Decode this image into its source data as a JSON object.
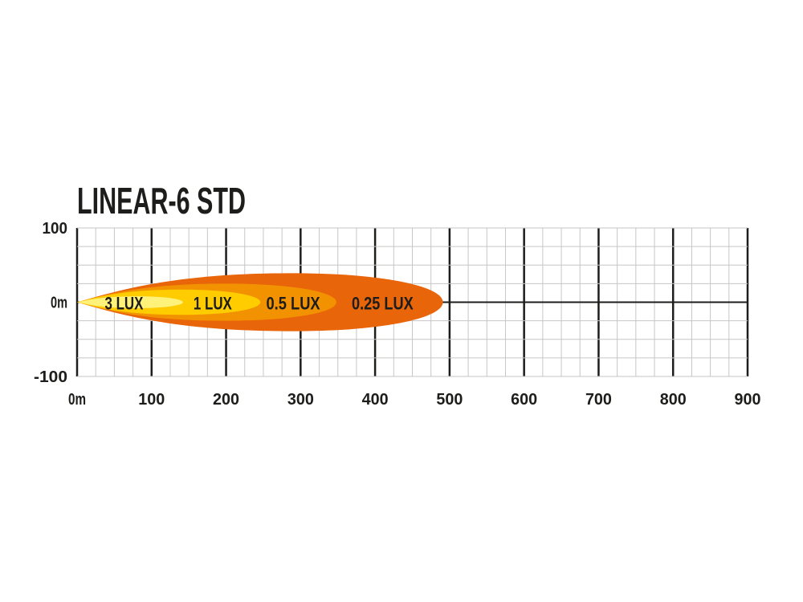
{
  "chart_data": {
    "type": "area",
    "title": "LINEAR-6 STD",
    "xlabel": "",
    "ylabel": "",
    "xlim": [
      0,
      900
    ],
    "ylim": [
      -100,
      100
    ],
    "x_ticks": [
      "0m",
      "100",
      "200",
      "300",
      "400",
      "500",
      "600",
      "700",
      "800",
      "900"
    ],
    "x_tick_values": [
      0,
      100,
      200,
      300,
      400,
      500,
      600,
      700,
      800,
      900
    ],
    "y_ticks": [
      "100",
      "0m",
      "-100"
    ],
    "y_tick_values": [
      100,
      0,
      -100
    ],
    "grid": true,
    "minor_grid_step": 25,
    "series": [
      {
        "name": "0.25 LUX",
        "reach": 491,
        "half_width": 39,
        "widest_at": 290,
        "color": "#E8650A",
        "label_x": 410
      },
      {
        "name": "0.5 LUX",
        "reach": 348,
        "half_width": 25,
        "widest_at": 200,
        "color": "#F39200",
        "label_x": 290
      },
      {
        "name": "1 LUX",
        "reach": 246,
        "half_width": 17,
        "widest_at": 140,
        "color": "#FFCC00",
        "label_x": 182
      },
      {
        "name": "3 LUX",
        "reach": 142,
        "half_width": 8,
        "widest_at": 80,
        "color": "#FFF27A",
        "label_x": 63
      }
    ]
  }
}
